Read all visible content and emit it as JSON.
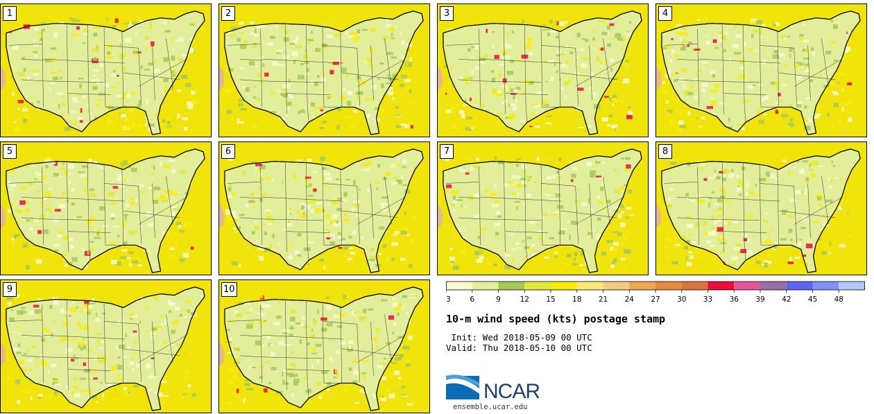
{
  "panels": [
    {
      "label": "1"
    },
    {
      "label": "2"
    },
    {
      "label": "3"
    },
    {
      "label": "4"
    },
    {
      "label": "5"
    },
    {
      "label": "6"
    },
    {
      "label": "7"
    },
    {
      "label": "8"
    },
    {
      "label": "9"
    },
    {
      "label": "10"
    }
  ],
  "colorbar": {
    "ticks": [
      "3",
      "6",
      "9",
      "12",
      "15",
      "18",
      "21",
      "24",
      "27",
      "30",
      "33",
      "36",
      "39",
      "42",
      "45",
      "48"
    ],
    "colors": [
      "#f6f9d2",
      "#e2ee9a",
      "#a5c95a",
      "#e2ea37",
      "#f8ec0d",
      "#fbe879",
      "#f4cc7c",
      "#eca853",
      "#e58b3c",
      "#db7540",
      "#ec0c3c",
      "#e05898",
      "#9a6fa8",
      "#5f64f0",
      "#7f93f7",
      "#b6c8fb"
    ]
  },
  "title": "10-m wind speed (kts) postage stamp",
  "init": " Init: Wed 2018-05-09 00 UTC",
  "valid": "Valid: Thu 2018-05-10 00 UTC",
  "logo": {
    "name": "NCAR",
    "url": "ensemble.ucar.edu"
  },
  "colors": {
    "ocean_high": "#f0e40a",
    "land_low": "#f6f9d2",
    "land_mid": "#e2ee9a",
    "land_green": "#a5c95a"
  }
}
